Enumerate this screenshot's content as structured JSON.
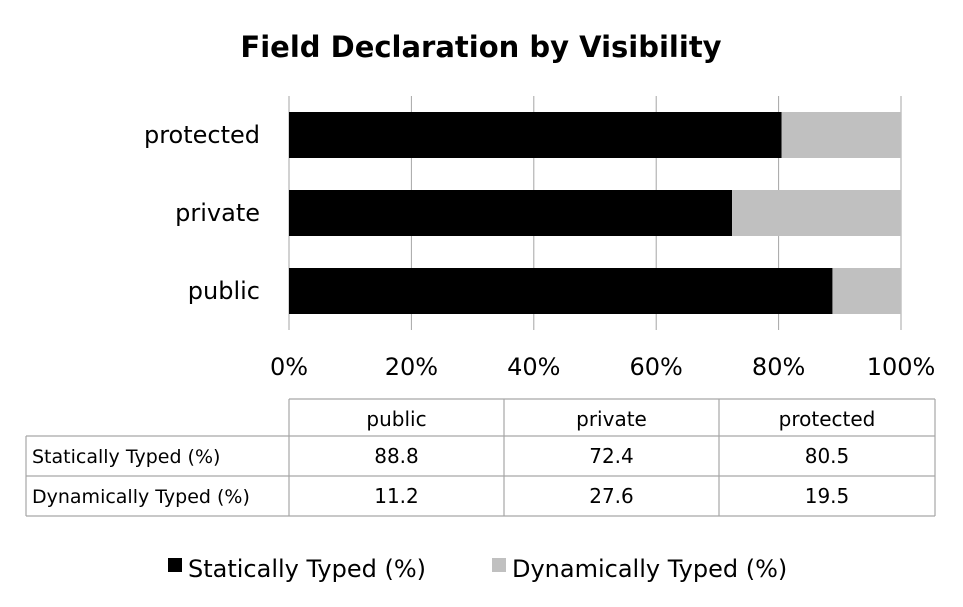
{
  "chart_data": {
    "type": "bar",
    "orientation": "horizontal",
    "stacked": "percent",
    "title": "Field Declaration by Visibility",
    "categories": [
      "public",
      "private",
      "protected"
    ],
    "series": [
      {
        "name": "Statically Typed (%)",
        "values": [
          88.8,
          72.4,
          80.5
        ],
        "color": "#000000"
      },
      {
        "name": "Dynamically Typed (%)",
        "values": [
          11.2,
          27.6,
          19.5
        ],
        "color": "#c0c0c0"
      }
    ],
    "xlim": [
      0,
      100
    ],
    "ticks": [
      "0%",
      "20%",
      "40%",
      "60%",
      "80%",
      "100%"
    ],
    "grid": true,
    "legend": "bottom",
    "data_table": {
      "columns": [
        "public",
        "private",
        "protected"
      ],
      "rows": [
        {
          "label": "Statically Typed (%)",
          "values": [
            "88.8",
            "72.4",
            "80.5"
          ]
        },
        {
          "label": "Dynamically Typed (%)",
          "values": [
            "11.2",
            "27.6",
            "19.5"
          ]
        }
      ]
    }
  }
}
